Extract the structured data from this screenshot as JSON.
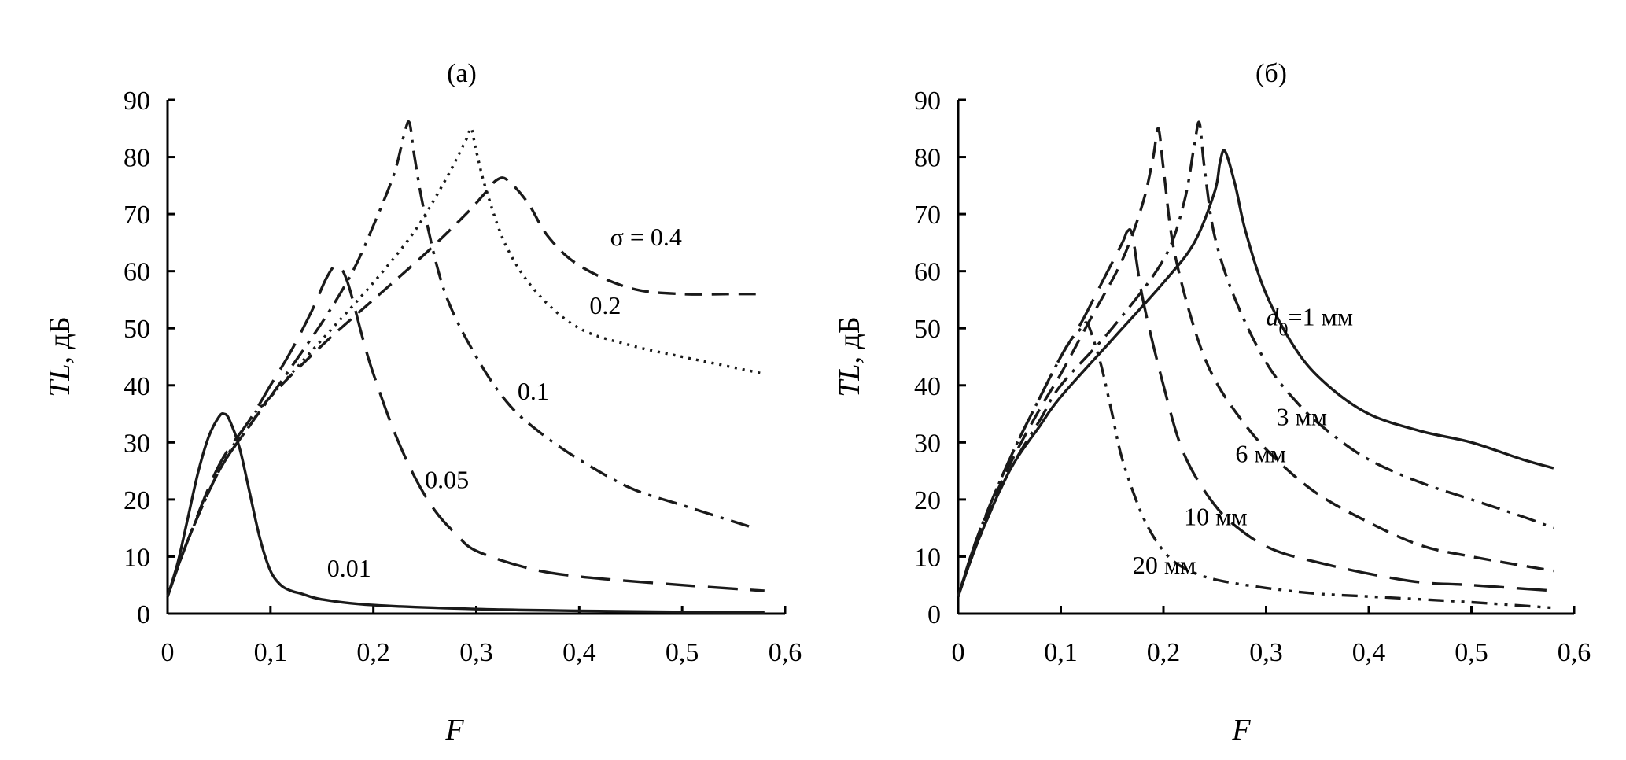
{
  "chart_data": [
    {
      "type": "line",
      "title": "(а)",
      "xlabel": "F",
      "ylabel_main": "TL",
      "ylabel_unit": ", дБ",
      "xlim": [
        0,
        0.6
      ],
      "ylim": [
        0,
        90
      ],
      "x_ticks": [
        "0",
        "0,1",
        "0,2",
        "0,3",
        "0,4",
        "0,5",
        "0,6"
      ],
      "y_ticks": [
        "0",
        "10",
        "20",
        "30",
        "40",
        "50",
        "60",
        "70",
        "80",
        "90"
      ],
      "grid": false,
      "series": [
        {
          "name": "0.01",
          "label": "0.01",
          "style": "solid",
          "x": [
            0,
            0.01,
            0.02,
            0.03,
            0.04,
            0.05,
            0.055,
            0.06,
            0.07,
            0.08,
            0.09,
            0.1,
            0.11,
            0.12,
            0.13,
            0.15,
            0.2,
            0.3,
            0.4,
            0.5,
            0.58
          ],
          "y": [
            3,
            9,
            17,
            25,
            31,
            34.5,
            35,
            34,
            29,
            21,
            13,
            7.5,
            5,
            4,
            3.5,
            2.5,
            1.5,
            0.8,
            0.5,
            0.3,
            0.2
          ]
        },
        {
          "name": "0.05",
          "label": "0.05",
          "style": "long-dash",
          "x": [
            0,
            0.02,
            0.05,
            0.08,
            0.1,
            0.12,
            0.14,
            0.155,
            0.165,
            0.175,
            0.19,
            0.2,
            0.22,
            0.24,
            0.26,
            0.28,
            0.3,
            0.35,
            0.4,
            0.5,
            0.58
          ],
          "y": [
            3,
            13,
            26,
            34,
            40,
            46,
            53,
            59,
            61,
            58,
            48,
            42,
            32,
            24,
            18,
            14,
            11,
            8,
            6.5,
            5,
            4
          ]
        },
        {
          "name": "0.1",
          "label": "0.1",
          "style": "dash-dot",
          "x": [
            0,
            0.02,
            0.05,
            0.08,
            0.1,
            0.15,
            0.18,
            0.2,
            0.22,
            0.23,
            0.235,
            0.24,
            0.25,
            0.27,
            0.3,
            0.33,
            0.36,
            0.4,
            0.45,
            0.5,
            0.57
          ],
          "y": [
            3,
            13,
            25,
            33,
            38,
            51,
            60,
            68,
            77,
            84,
            86,
            80,
            70,
            56,
            45,
            37,
            32,
            27,
            22,
            19,
            15
          ]
        },
        {
          "name": "0.2",
          "label": "0.2",
          "style": "dotted",
          "x": [
            0,
            0.02,
            0.05,
            0.08,
            0.1,
            0.15,
            0.2,
            0.24,
            0.27,
            0.29,
            0.295,
            0.3,
            0.31,
            0.33,
            0.36,
            0.4,
            0.45,
            0.5,
            0.58
          ],
          "y": [
            3,
            13,
            25,
            34,
            38,
            48,
            58,
            67,
            76,
            83,
            85,
            81,
            74,
            64,
            56,
            50,
            47,
            45,
            42
          ]
        },
        {
          "name": "0.4",
          "label": "σ = 0.4",
          "style": "dash",
          "x": [
            0,
            0.02,
            0.05,
            0.08,
            0.1,
            0.15,
            0.2,
            0.25,
            0.29,
            0.31,
            0.32,
            0.33,
            0.35,
            0.37,
            0.4,
            0.45,
            0.5,
            0.55,
            0.58
          ],
          "y": [
            3,
            13,
            25,
            33,
            38,
            47,
            55,
            63,
            70,
            74,
            76,
            76,
            72,
            66,
            61,
            57,
            56,
            56,
            56
          ]
        }
      ]
    },
    {
      "type": "line",
      "title": "(б)",
      "xlabel": "F",
      "ylabel_main": "TL",
      "ylabel_unit": ", дБ",
      "xlim": [
        0,
        0.6
      ],
      "ylim": [
        0,
        90
      ],
      "x_ticks": [
        "0",
        "0,1",
        "0,2",
        "0,3",
        "0,4",
        "0,5",
        "0,6"
      ],
      "y_ticks": [
        "0",
        "10",
        "20",
        "30",
        "40",
        "50",
        "60",
        "70",
        "80",
        "90"
      ],
      "grid": false,
      "series": [
        {
          "name": "1 мм",
          "label": "d0=1 мм",
          "style": "solid",
          "x": [
            0,
            0.02,
            0.05,
            0.08,
            0.1,
            0.15,
            0.2,
            0.23,
            0.25,
            0.255,
            0.26,
            0.27,
            0.28,
            0.3,
            0.33,
            0.36,
            0.4,
            0.45,
            0.5,
            0.55,
            0.58
          ],
          "y": [
            3,
            13,
            25,
            33,
            38,
            48,
            58,
            65,
            74,
            79,
            81,
            75,
            67,
            56,
            46,
            40,
            35,
            32,
            30,
            27,
            25.5
          ]
        },
        {
          "name": "3 мм",
          "label": "3 мм",
          "style": "dash-dot",
          "x": [
            0,
            0.02,
            0.05,
            0.08,
            0.1,
            0.15,
            0.2,
            0.22,
            0.23,
            0.235,
            0.24,
            0.25,
            0.27,
            0.3,
            0.33,
            0.36,
            0.4,
            0.45,
            0.5,
            0.55,
            0.58
          ],
          "y": [
            3,
            13,
            25,
            34,
            40,
            50,
            62,
            72,
            82,
            86,
            78,
            66,
            55,
            44,
            37,
            32,
            27,
            23,
            20,
            17,
            15
          ]
        },
        {
          "name": "6 мм",
          "label": "6 мм",
          "style": "dash",
          "x": [
            0,
            0.02,
            0.05,
            0.08,
            0.1,
            0.13,
            0.16,
            0.18,
            0.19,
            0.195,
            0.2,
            0.21,
            0.23,
            0.25,
            0.28,
            0.31,
            0.35,
            0.4,
            0.45,
            0.5,
            0.58
          ],
          "y": [
            3,
            14,
            26,
            36,
            42,
            52,
            62,
            72,
            80,
            85,
            78,
            64,
            50,
            41,
            33,
            27,
            21,
            16,
            12,
            10,
            7.5
          ]
        },
        {
          "name": "10 мм",
          "label": "10 мм",
          "style": "long-dash",
          "x": [
            0,
            0.02,
            0.05,
            0.08,
            0.1,
            0.12,
            0.14,
            0.16,
            0.165,
            0.17,
            0.18,
            0.2,
            0.22,
            0.25,
            0.28,
            0.31,
            0.35,
            0.4,
            0.45,
            0.5,
            0.58
          ],
          "y": [
            3,
            14,
            27,
            38,
            45,
            51,
            58,
            65,
            67,
            66,
            55,
            40,
            28,
            19,
            14,
            11,
            9,
            7,
            5.5,
            5,
            4
          ]
        },
        {
          "name": "20 мм",
          "label": "20 мм",
          "style": "dash-dot-dot",
          "x": [
            0,
            0.02,
            0.05,
            0.08,
            0.1,
            0.11,
            0.12,
            0.125,
            0.13,
            0.14,
            0.15,
            0.16,
            0.18,
            0.2,
            0.22,
            0.25,
            0.3,
            0.35,
            0.4,
            0.5,
            0.58
          ],
          "y": [
            3,
            14,
            27,
            38,
            45,
            48,
            50,
            51,
            49,
            43,
            35,
            27,
            17,
            11,
            8,
            6,
            4.5,
            3.5,
            3,
            2,
            1
          ]
        }
      ]
    }
  ]
}
